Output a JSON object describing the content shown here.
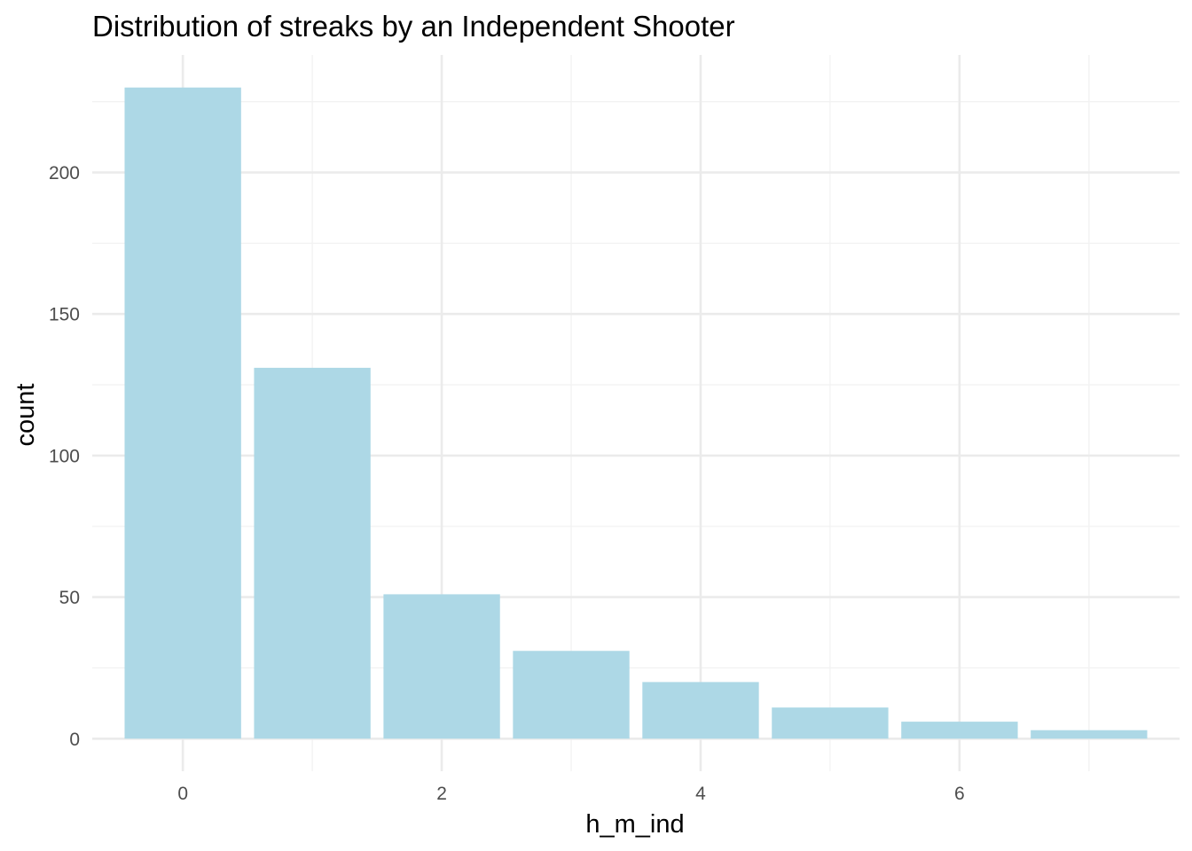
{
  "chart_data": {
    "type": "bar",
    "title": "Distribution of streaks by an Independent Shooter",
    "xlabel": "h_m_ind",
    "ylabel": "count",
    "x": [
      0,
      1,
      2,
      3,
      4,
      5,
      6,
      7
    ],
    "values": [
      230,
      131,
      51,
      31,
      20,
      11,
      6,
      3
    ],
    "xlim": [
      -0.7,
      7.7
    ],
    "ylim": [
      -11.5,
      241.5
    ],
    "x_ticks": [
      0,
      2,
      4,
      6
    ],
    "y_ticks": [
      0,
      50,
      100,
      150,
      200
    ],
    "x_tick_labels": [
      "0",
      "2",
      "4",
      "6"
    ],
    "y_tick_labels": [
      "0",
      "50",
      "100",
      "150",
      "200"
    ],
    "grid": true,
    "legend": "none",
    "bar_color": "#add8e6",
    "grid_major_color": "#ebebeb",
    "grid_minor_color": "#f2f2f2",
    "background_color": "#ffffff"
  }
}
